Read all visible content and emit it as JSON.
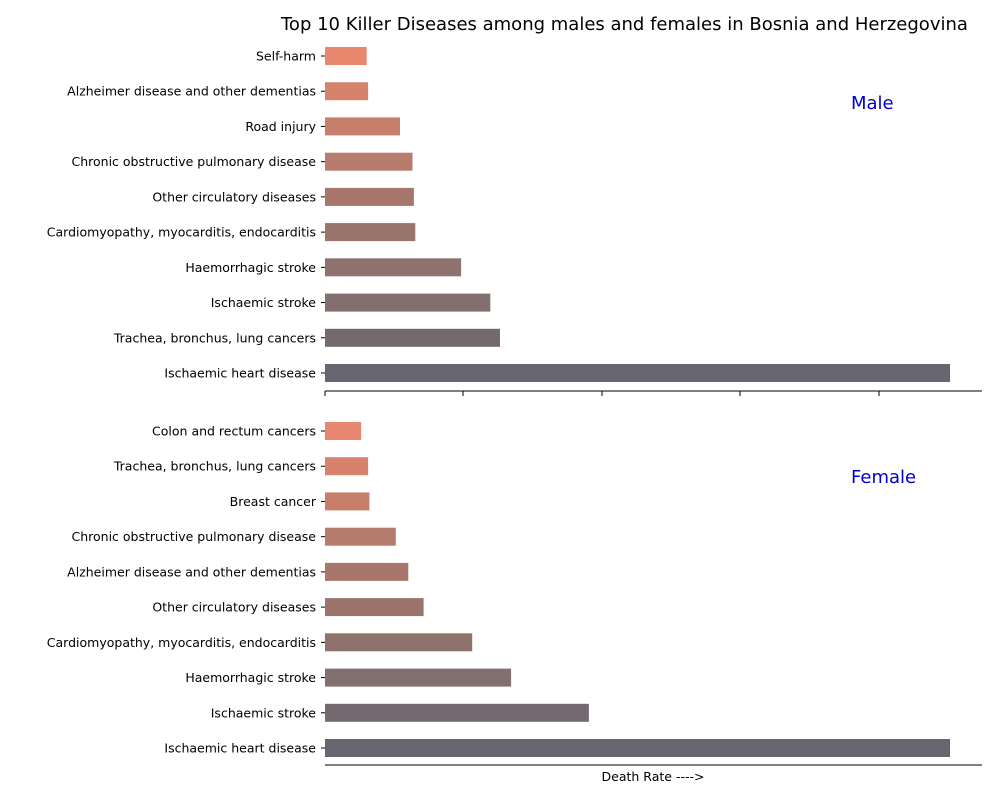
{
  "chart_data": {
    "type": "bar",
    "orientation": "horizontal",
    "title": "Top 10 Killer Diseases among males and females in Bosnia and Herzegovina",
    "xlabel": "Death Rate ---->",
    "shared_x_axis": true,
    "x_tick_labels_shown": false,
    "xlim": [
      0,
      237
    ],
    "grid": false,
    "panels": [
      {
        "label": "Male",
        "categories": [
          "Ischaemic heart disease",
          "Trachea, bronchus, lung cancers",
          "Ischaemic stroke",
          "Haemorrhagic stroke",
          "Cardiomyopathy, myocarditis, endocarditis",
          "Other circulatory diseases",
          "Chronic obstructive pulmonary disease",
          "Road injury",
          "Alzheimer disease and other dementias",
          "Self-harm"
        ],
        "values": [
          225,
          63,
          59.5,
          49,
          32.5,
          32,
          31.5,
          27,
          15.5,
          15
        ]
      },
      {
        "label": "Female",
        "categories": [
          "Ischaemic heart disease",
          "Ischaemic stroke",
          "Haemorrhagic stroke",
          "Cardiomyopathy, myocarditis, endocarditis",
          "Other circulatory diseases",
          "Alzheimer disease and other dementias",
          "Chronic obstructive pulmonary disease",
          "Breast cancer",
          "Trachea, bronchus, lung cancers",
          "Colon and rectum cancers"
        ],
        "values": [
          225,
          95,
          67,
          53,
          35.5,
          30,
          25.5,
          16,
          15.5,
          13
        ]
      }
    ],
    "colors": [
      "#676670",
      "#756970",
      "#836f6f",
      "#8f716d",
      "#9b746c",
      "#a9766b",
      "#b67c6d",
      "#c77f6c",
      "#d7826c",
      "#e8876d",
      "#f0866d"
    ]
  }
}
